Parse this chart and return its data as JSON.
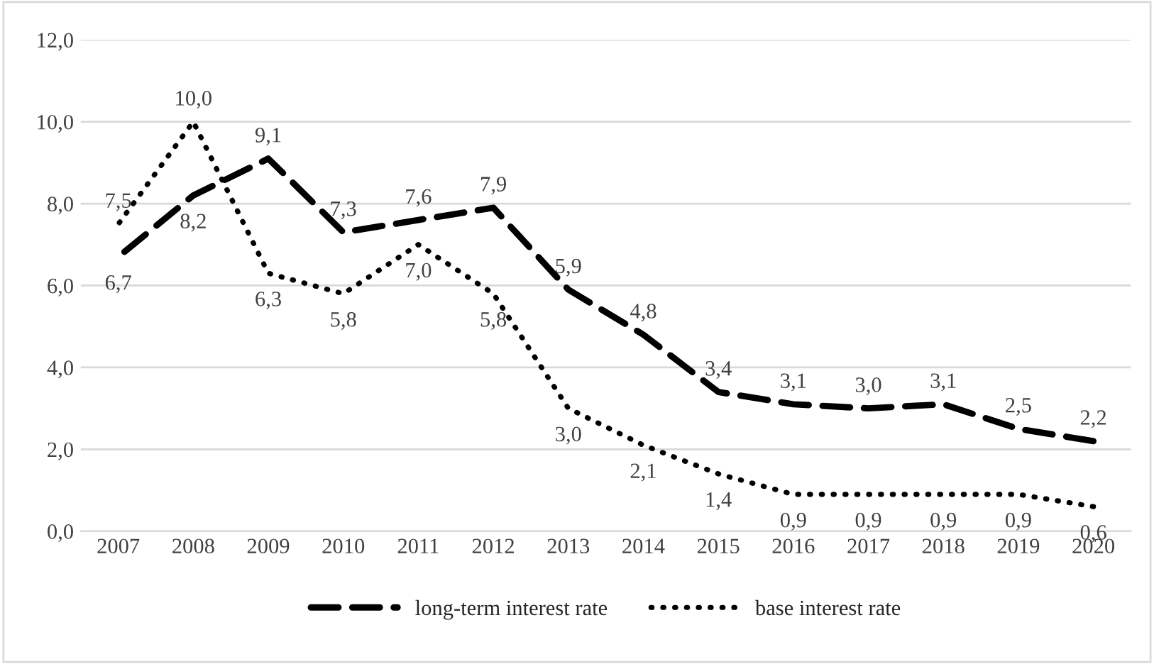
{
  "chart_data": {
    "type": "line",
    "categories": [
      "2007",
      "2008",
      "2009",
      "2010",
      "2011",
      "2012",
      "2013",
      "2014",
      "2015",
      "2016",
      "2017",
      "2018",
      "2019",
      "2020"
    ],
    "series": [
      {
        "name": "long-term interest rate",
        "color": "#000000",
        "line_style": "dashed",
        "values": [
          6.7,
          8.2,
          9.1,
          7.3,
          7.6,
          7.9,
          5.9,
          4.8,
          3.4,
          3.1,
          3.0,
          3.1,
          2.5,
          2.2
        ],
        "value_labels": [
          "6,7",
          "8,2",
          "9,1",
          "7,3",
          "7,6",
          "7,9",
          "5,9",
          "4,8",
          "3,4",
          "3,1",
          "3,0",
          "3,1",
          "2,5",
          "2,2"
        ]
      },
      {
        "name": "base interest rate",
        "color": "#000000",
        "line_style": "dotted",
        "values": [
          7.5,
          10.0,
          6.3,
          5.8,
          7.0,
          5.8,
          3.0,
          2.1,
          1.4,
          0.9,
          0.9,
          0.9,
          0.9,
          0.6
        ],
        "value_labels": [
          "7,5",
          "10,0",
          "6,3",
          "5,8",
          "7,0",
          "5,8",
          "3,0",
          "2,1",
          "1,4",
          "0,9",
          "0,9",
          "0,9",
          "0,9",
          "0,6"
        ]
      }
    ],
    "ylim": [
      0,
      12
    ],
    "yticks": [
      {
        "value": 0,
        "label": "0,0"
      },
      {
        "value": 2,
        "label": "2,0"
      },
      {
        "value": 4,
        "label": "4,0"
      },
      {
        "value": 6,
        "label": "6,0"
      },
      {
        "value": 8,
        "label": "8,0"
      },
      {
        "value": 10,
        "label": "10,0"
      },
      {
        "value": 12,
        "label": "12,0"
      }
    ],
    "grid": "y",
    "legend": "bottom",
    "marker": "none"
  }
}
